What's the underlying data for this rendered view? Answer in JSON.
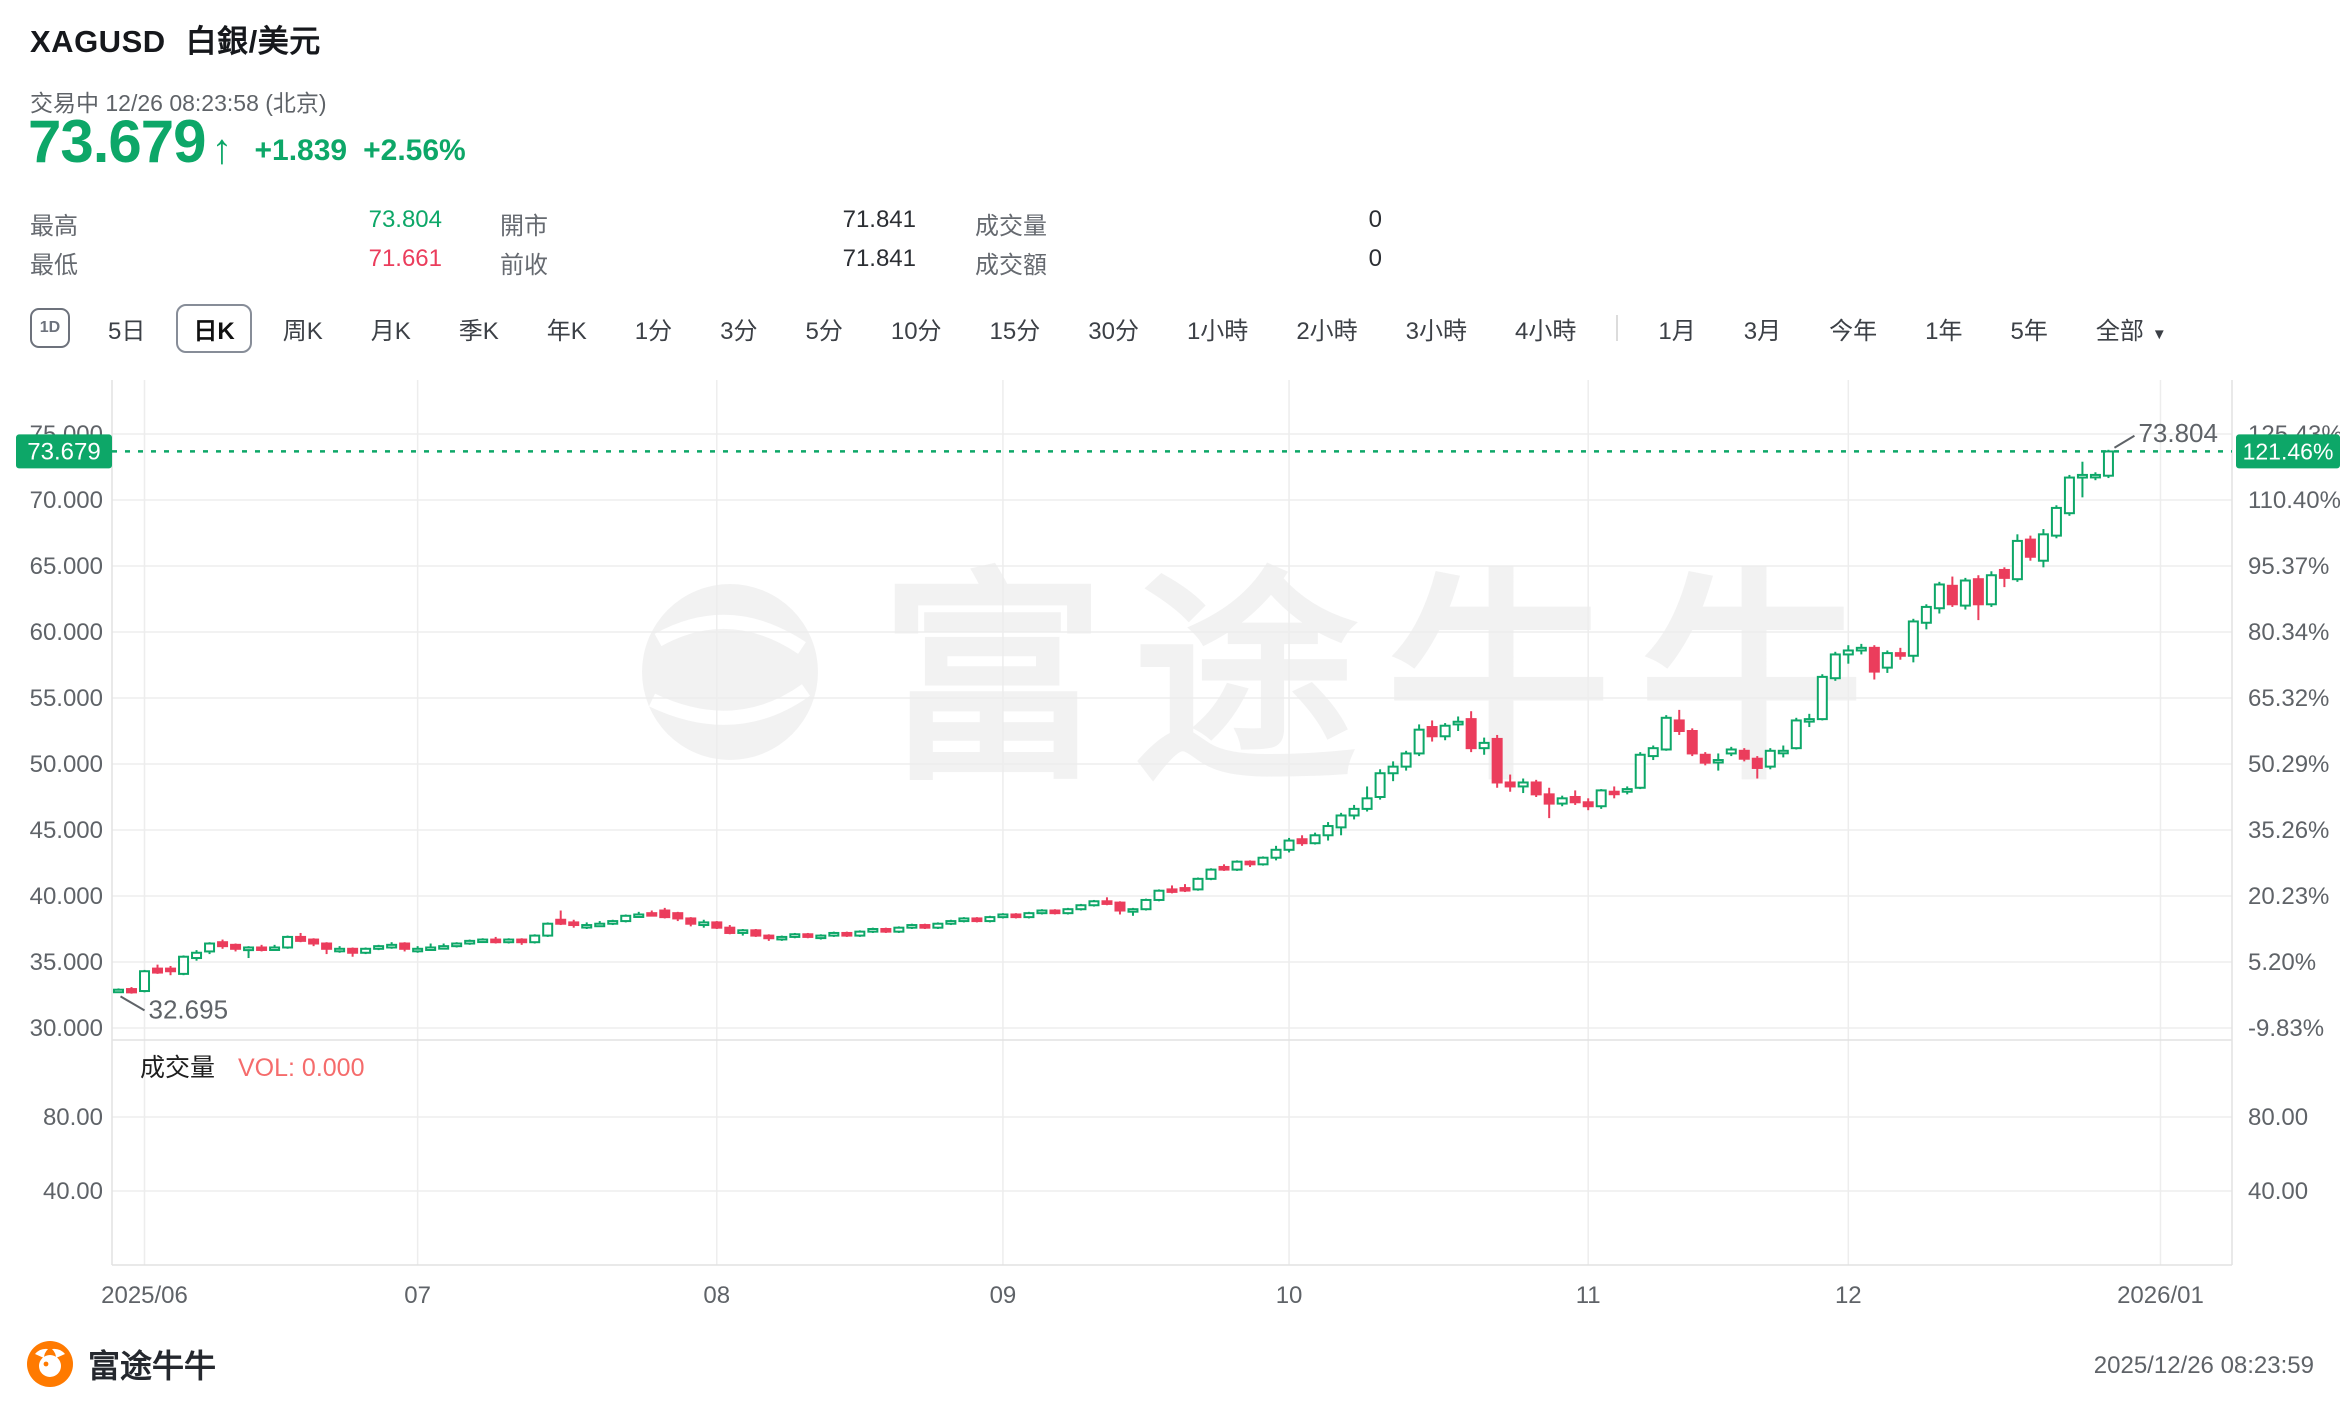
{
  "header": {
    "symbol": "XAGUSD",
    "name": "白銀/美元",
    "status_line": "交易中 12/26 08:23:58 (北京)",
    "last_price": "73.679",
    "arrow": "↑",
    "change": "+1.839",
    "change_pct": "+2.56%"
  },
  "stats": {
    "high_label": "最高",
    "high_value": "73.804",
    "low_label": "最低",
    "low_value": "71.661",
    "open_label": "開市",
    "open_value": "71.841",
    "prev_close_label": "前收",
    "prev_close_value": "71.841",
    "volume_label": "成交量",
    "volume_value": "0",
    "turnover_label": "成交額",
    "turnover_value": "0"
  },
  "toolbar": {
    "icon": "1D",
    "items": [
      {
        "label": "5日"
      },
      {
        "label": "日K",
        "selected": true
      },
      {
        "label": "周K"
      },
      {
        "label": "月K"
      },
      {
        "label": "季K"
      },
      {
        "label": "年K"
      },
      {
        "label": "1分"
      },
      {
        "label": "3分"
      },
      {
        "label": "5分"
      },
      {
        "label": "10分"
      },
      {
        "label": "15分"
      },
      {
        "label": "30分"
      },
      {
        "label": "1小時"
      },
      {
        "label": "2小時"
      },
      {
        "label": "3小時"
      },
      {
        "label": "4小時"
      },
      {
        "divider": true
      },
      {
        "label": "1月"
      },
      {
        "label": "3月"
      },
      {
        "label": "今年"
      },
      {
        "label": "1年"
      },
      {
        "label": "5年"
      },
      {
        "label": "全部",
        "caret": "▼"
      }
    ]
  },
  "watermark": "富途牛牛",
  "footer": {
    "brand": "富途牛牛",
    "timestamp": "2025/12/26 08:23:59"
  },
  "chart_data": {
    "type": "candlestick",
    "title": "XAGUSD 白銀/美元 日K",
    "grid": true,
    "price_axis_ticks": [
      "75.000",
      "70.000",
      "65.000",
      "60.000",
      "55.000",
      "50.000",
      "45.000",
      "40.000",
      "35.000",
      "30.000"
    ],
    "price_axis_values": [
      75,
      70,
      65,
      60,
      55,
      50,
      45,
      40,
      35,
      30
    ],
    "pct_axis_ticks": [
      "125.43%",
      "110.40%",
      "95.37%",
      "80.34%",
      "65.32%",
      "50.29%",
      "35.26%",
      "20.23%",
      "5.20%",
      "-9.83%"
    ],
    "volume_axis_ticks": [
      "80.00",
      "40.00"
    ],
    "x_ticks": [
      {
        "label": "2025/06",
        "slot": 2
      },
      {
        "label": "07",
        "slot": 23
      },
      {
        "label": "08",
        "slot": 46
      },
      {
        "label": "09",
        "slot": 68
      },
      {
        "label": "10",
        "slot": 90
      },
      {
        "label": "11",
        "slot": 113
      },
      {
        "label": "12",
        "slot": 133
      },
      {
        "label": "2026/01",
        "slot": 157
      }
    ],
    "total_slots": 163,
    "current_price": 73.679,
    "badges": {
      "price": "73.679",
      "pct": "121.46%"
    },
    "annotations": {
      "high": "73.804",
      "high_value": 73.804,
      "low": "32.695",
      "low_value": 32.695
    },
    "volume_pane": {
      "title": "成交量",
      "value": "VOL: 0.000"
    },
    "colors": {
      "up": "#0DA768",
      "down": "#EB3D5C",
      "vol_text": "#F56C6C",
      "grid": "#ededed",
      "axis_text": "#5f6368"
    },
    "candles_format": [
      "open",
      "high",
      "low",
      "close"
    ],
    "candles": [
      [
        32.75,
        33.0,
        32.695,
        32.9
      ],
      [
        32.95,
        33.1,
        32.6,
        32.7
      ],
      [
        32.8,
        34.4,
        32.7,
        34.3
      ],
      [
        34.5,
        34.8,
        34.1,
        34.2
      ],
      [
        34.5,
        34.7,
        34.0,
        34.3
      ],
      [
        34.1,
        35.5,
        34.0,
        35.4
      ],
      [
        35.3,
        35.9,
        35.1,
        35.7
      ],
      [
        35.8,
        36.5,
        35.6,
        36.4
      ],
      [
        36.5,
        36.7,
        36.0,
        36.2
      ],
      [
        36.3,
        36.4,
        35.8,
        36.0
      ],
      [
        35.9,
        36.2,
        35.3,
        36.1
      ],
      [
        36.1,
        36.3,
        35.8,
        36.0
      ],
      [
        36.0,
        36.3,
        35.9,
        36.1
      ],
      [
        36.1,
        37.0,
        36.0,
        36.9
      ],
      [
        36.9,
        37.2,
        36.5,
        36.6
      ],
      [
        36.7,
        36.8,
        36.2,
        36.4
      ],
      [
        36.4,
        36.5,
        35.6,
        36.0
      ],
      [
        35.9,
        36.2,
        35.7,
        36.0
      ],
      [
        36.0,
        36.1,
        35.4,
        35.7
      ],
      [
        35.7,
        36.1,
        35.6,
        36.0
      ],
      [
        36.0,
        36.3,
        35.9,
        36.2
      ],
      [
        36.1,
        36.5,
        36.0,
        36.3
      ],
      [
        36.4,
        36.5,
        35.8,
        36.0
      ],
      [
        35.9,
        36.2,
        35.7,
        36.0
      ],
      [
        36.0,
        36.4,
        35.9,
        36.1
      ],
      [
        36.1,
        36.4,
        36.0,
        36.2
      ],
      [
        36.2,
        36.5,
        36.1,
        36.4
      ],
      [
        36.4,
        36.7,
        36.3,
        36.6
      ],
      [
        36.6,
        36.8,
        36.5,
        36.7
      ],
      [
        36.7,
        36.9,
        36.4,
        36.5
      ],
      [
        36.5,
        36.8,
        36.4,
        36.7
      ],
      [
        36.7,
        36.8,
        36.3,
        36.5
      ],
      [
        36.5,
        37.1,
        36.4,
        37.0
      ],
      [
        37.0,
        38.0,
        36.9,
        37.9
      ],
      [
        38.2,
        38.9,
        37.8,
        37.9
      ],
      [
        38.0,
        38.2,
        37.6,
        37.8
      ],
      [
        37.7,
        38.0,
        37.5,
        37.8
      ],
      [
        37.8,
        38.1,
        37.7,
        37.9
      ],
      [
        37.9,
        38.2,
        37.8,
        38.1
      ],
      [
        38.1,
        38.6,
        38.0,
        38.5
      ],
      [
        38.5,
        38.8,
        38.4,
        38.6
      ],
      [
        38.7,
        38.9,
        38.5,
        38.6
      ],
      [
        38.9,
        39.1,
        38.3,
        38.4
      ],
      [
        38.7,
        38.8,
        38.1,
        38.3
      ],
      [
        38.3,
        38.4,
        37.7,
        37.9
      ],
      [
        37.8,
        38.2,
        37.6,
        38.0
      ],
      [
        38.0,
        38.1,
        37.5,
        37.6
      ],
      [
        37.6,
        37.8,
        37.1,
        37.2
      ],
      [
        37.2,
        37.5,
        37.0,
        37.4
      ],
      [
        37.4,
        37.5,
        36.9,
        37.0
      ],
      [
        37.0,
        37.1,
        36.6,
        36.8
      ],
      [
        36.8,
        37.0,
        36.6,
        36.9
      ],
      [
        36.9,
        37.2,
        36.8,
        37.1
      ],
      [
        37.1,
        37.2,
        36.8,
        36.9
      ],
      [
        36.9,
        37.1,
        36.7,
        37.0
      ],
      [
        37.0,
        37.3,
        36.9,
        37.2
      ],
      [
        37.2,
        37.3,
        36.9,
        37.0
      ],
      [
        37.0,
        37.4,
        36.9,
        37.3
      ],
      [
        37.3,
        37.6,
        37.2,
        37.5
      ],
      [
        37.5,
        37.6,
        37.2,
        37.3
      ],
      [
        37.3,
        37.7,
        37.2,
        37.6
      ],
      [
        37.6,
        37.9,
        37.5,
        37.8
      ],
      [
        37.8,
        37.9,
        37.5,
        37.6
      ],
      [
        37.6,
        38.0,
        37.5,
        37.9
      ],
      [
        37.9,
        38.2,
        37.8,
        38.1
      ],
      [
        38.1,
        38.4,
        38.0,
        38.3
      ],
      [
        38.3,
        38.4,
        38.0,
        38.1
      ],
      [
        38.1,
        38.5,
        38.0,
        38.4
      ],
      [
        38.4,
        38.7,
        38.3,
        38.6
      ],
      [
        38.6,
        38.7,
        38.3,
        38.4
      ],
      [
        38.4,
        38.8,
        38.3,
        38.7
      ],
      [
        38.7,
        39.0,
        38.6,
        38.9
      ],
      [
        38.9,
        39.0,
        38.6,
        38.7
      ],
      [
        38.7,
        39.1,
        38.6,
        39.0
      ],
      [
        39.0,
        39.4,
        38.9,
        39.3
      ],
      [
        39.3,
        39.7,
        39.2,
        39.6
      ],
      [
        39.6,
        39.9,
        39.3,
        39.4
      ],
      [
        39.5,
        39.6,
        38.6,
        38.9
      ],
      [
        38.9,
        39.1,
        38.5,
        39.0
      ],
      [
        39.0,
        39.8,
        38.9,
        39.7
      ],
      [
        39.7,
        40.5,
        39.6,
        40.4
      ],
      [
        40.5,
        40.8,
        40.2,
        40.4
      ],
      [
        40.6,
        40.9,
        40.3,
        40.5
      ],
      [
        40.5,
        41.4,
        40.4,
        41.3
      ],
      [
        41.3,
        42.1,
        41.2,
        42.0
      ],
      [
        42.2,
        42.4,
        41.9,
        42.0
      ],
      [
        42.0,
        42.7,
        41.9,
        42.6
      ],
      [
        42.6,
        42.7,
        42.2,
        42.4
      ],
      [
        42.4,
        43.0,
        42.3,
        42.9
      ],
      [
        42.9,
        43.8,
        42.7,
        43.5
      ],
      [
        43.5,
        44.4,
        43.3,
        44.2
      ],
      [
        44.3,
        44.6,
        43.8,
        44.0
      ],
      [
        44.0,
        44.8,
        43.9,
        44.6
      ],
      [
        44.6,
        45.6,
        44.2,
        45.3
      ],
      [
        45.2,
        46.3,
        44.6,
        46.1
      ],
      [
        46.1,
        46.9,
        45.8,
        46.6
      ],
      [
        46.6,
        48.3,
        46.4,
        47.4
      ],
      [
        47.5,
        49.6,
        47.3,
        49.3
      ],
      [
        49.3,
        50.2,
        48.7,
        49.8
      ],
      [
        49.8,
        51.0,
        49.5,
        50.8
      ],
      [
        50.8,
        53.0,
        50.6,
        52.6
      ],
      [
        52.8,
        53.3,
        51.7,
        52.1
      ],
      [
        52.1,
        53.1,
        51.8,
        52.9
      ],
      [
        53.0,
        53.6,
        52.5,
        53.2
      ],
      [
        53.4,
        54.0,
        50.9,
        51.2
      ],
      [
        51.2,
        52.0,
        50.7,
        51.6
      ],
      [
        51.9,
        52.2,
        48.2,
        48.6
      ],
      [
        48.6,
        49.2,
        47.9,
        48.3
      ],
      [
        48.3,
        48.9,
        47.8,
        48.6
      ],
      [
        48.6,
        48.8,
        47.5,
        47.7
      ],
      [
        47.7,
        48.2,
        45.9,
        47.0
      ],
      [
        47.0,
        47.6,
        46.8,
        47.4
      ],
      [
        47.5,
        48.0,
        46.9,
        47.1
      ],
      [
        47.1,
        47.4,
        46.5,
        46.8
      ],
      [
        46.8,
        48.1,
        46.6,
        48.0
      ],
      [
        47.9,
        48.3,
        47.4,
        47.8
      ],
      [
        47.9,
        48.3,
        47.7,
        48.1
      ],
      [
        48.2,
        50.9,
        48.1,
        50.7
      ],
      [
        50.6,
        51.4,
        50.3,
        51.2
      ],
      [
        51.1,
        53.7,
        51.0,
        53.5
      ],
      [
        53.3,
        54.1,
        52.2,
        52.5
      ],
      [
        52.5,
        52.7,
        50.6,
        50.8
      ],
      [
        50.7,
        50.9,
        49.9,
        50.1
      ],
      [
        50.2,
        50.8,
        49.5,
        50.3
      ],
      [
        50.8,
        51.3,
        50.6,
        51.1
      ],
      [
        51.0,
        51.2,
        50.2,
        50.4
      ],
      [
        50.4,
        50.6,
        48.9,
        49.7
      ],
      [
        49.8,
        51.2,
        49.6,
        51.0
      ],
      [
        51.0,
        51.4,
        50.5,
        51.0
      ],
      [
        51.2,
        53.5,
        51.1,
        53.3
      ],
      [
        53.3,
        53.8,
        52.8,
        53.4
      ],
      [
        53.4,
        56.8,
        53.3,
        56.6
      ],
      [
        56.5,
        58.5,
        56.3,
        58.3
      ],
      [
        58.3,
        59.0,
        57.6,
        58.6
      ],
      [
        58.6,
        59.1,
        58.3,
        58.8
      ],
      [
        58.8,
        59.0,
        56.4,
        57.0
      ],
      [
        57.3,
        58.6,
        56.9,
        58.4
      ],
      [
        58.4,
        58.8,
        57.9,
        58.2
      ],
      [
        58.2,
        61.0,
        57.7,
        60.8
      ],
      [
        60.7,
        62.1,
        60.2,
        61.9
      ],
      [
        61.8,
        63.8,
        61.4,
        63.6
      ],
      [
        63.5,
        64.2,
        61.9,
        62.1
      ],
      [
        62.0,
        64.1,
        61.7,
        63.9
      ],
      [
        64.0,
        64.3,
        60.9,
        62.1
      ],
      [
        62.1,
        64.6,
        61.9,
        64.3
      ],
      [
        64.7,
        64.9,
        63.4,
        64.1
      ],
      [
        64.0,
        67.4,
        63.8,
        66.9
      ],
      [
        67.0,
        67.3,
        65.4,
        65.7
      ],
      [
        65.4,
        67.8,
        64.9,
        67.4
      ],
      [
        67.3,
        69.6,
        67.1,
        69.4
      ],
      [
        69.0,
        71.9,
        68.8,
        71.7
      ],
      [
        71.7,
        72.9,
        70.2,
        71.9
      ],
      [
        71.9,
        72.1,
        71.5,
        71.9
      ],
      [
        71.841,
        73.804,
        71.661,
        73.679
      ]
    ]
  }
}
